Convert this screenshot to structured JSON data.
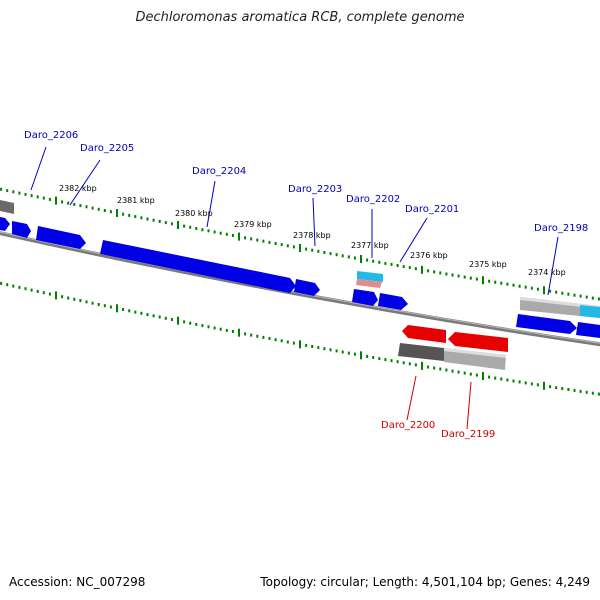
{
  "title": "Dechloromonas aromatica RCB, complete genome",
  "footer": {
    "accession": "Accession: NC_007298",
    "topology": "Topology: circular; Length: 4,501,104 bp; Genes: 4,249"
  },
  "colors": {
    "forward_gene": "#0000e6",
    "reverse_gene": "#e60000",
    "label_forward": "#0000bb",
    "label_reverse": "#cc0000",
    "tick": "#008000",
    "backbone": "#808080",
    "rna_cyan": "#22b8e8",
    "rna_pink": "#e48a8a",
    "hit_gray": "#9a9a9a",
    "hit_dark": "#555555"
  },
  "gene_labels": [
    {
      "name": "Daro_2206",
      "strand": "forward"
    },
    {
      "name": "Daro_2205",
      "strand": "forward"
    },
    {
      "name": "Daro_2204",
      "strand": "forward"
    },
    {
      "name": "Daro_2203",
      "strand": "forward"
    },
    {
      "name": "Daro_2202",
      "strand": "forward"
    },
    {
      "name": "Daro_2201",
      "strand": "forward"
    },
    {
      "name": "Daro_2198",
      "strand": "forward"
    },
    {
      "name": "Daro_2200",
      "strand": "reverse"
    },
    {
      "name": "Daro_2199",
      "strand": "reverse"
    }
  ],
  "scale_labels": [
    "2382 kbp",
    "2381 kbp",
    "2380 kbp",
    "2379 kbp",
    "2378 kbp",
    "2377 kbp",
    "2376 kbp",
    "2375 kbp",
    "2374 kbp"
  ]
}
